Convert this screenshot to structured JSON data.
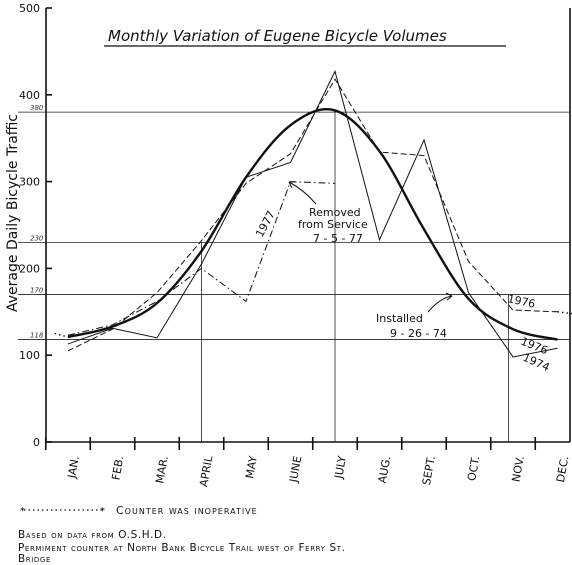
{
  "chart_data": {
    "type": "line",
    "title": "Monthly Variation of Eugene Bicycle Volumes",
    "ylabel": "Average Daily Bicycle Traffic",
    "xlabel": "",
    "ylim": [
      0,
      500
    ],
    "yticks": [
      "0",
      "100",
      "200",
      "300",
      "400",
      "500"
    ],
    "categories": [
      "Jan.",
      "Feb.",
      "Mar.",
      "April",
      "May",
      "June",
      "July",
      "Aug.",
      "Sept.",
      "Oct.",
      "Nov.",
      "Dec."
    ],
    "reference_lines": [
      {
        "label": "380",
        "value": 380
      },
      {
        "label": "230",
        "value": 230
      },
      {
        "label": "170",
        "value": 170
      },
      {
        "label": "118",
        "value": 118
      }
    ],
    "series": [
      {
        "name": "",
        "style": "smooth-bold",
        "x": [
          0,
          1,
          2,
          3,
          4,
          5,
          6,
          7,
          8,
          9,
          10,
          11
        ],
        "values": [
          121,
          133,
          160,
          220,
          305,
          365,
          382,
          335,
          245,
          165,
          130,
          118
        ]
      },
      {
        "name": "1974",
        "style": "thin",
        "x": [
          0,
          1,
          2,
          3,
          4,
          5,
          6,
          7,
          8,
          9,
          10,
          11
        ],
        "values": [
          113,
          131,
          120,
          205,
          305,
          322,
          427,
          233,
          348,
          172,
          98,
          108
        ]
      },
      {
        "name": "1976",
        "style": "dashed",
        "x": [
          0,
          1,
          2,
          3,
          4,
          5,
          6,
          7,
          8,
          9,
          10,
          11
        ],
        "values": [
          105,
          130,
          172,
          232,
          298,
          332,
          418,
          334,
          330,
          208,
          152,
          150
        ]
      },
      {
        "name": "1977",
        "style": "dash-dot",
        "x": [
          0,
          1,
          2,
          3,
          4,
          5,
          6
        ],
        "values": [
          123,
          135,
          162,
          200,
          162,
          300,
          298
        ]
      },
      {
        "name": "",
        "style": "inoperative",
        "x": [
          11,
          11.8
        ],
        "values": [
          150,
          145
        ]
      },
      {
        "name": "",
        "style": "inoperative",
        "x": [
          -0.3,
          0
        ],
        "values": [
          125,
          121
        ]
      }
    ],
    "annotations": [
      {
        "text_lines": [
          "Removed",
          "from Service",
          "7 - 5 - 77"
        ]
      },
      {
        "text_lines": [
          "Installed",
          "9 - 26 - 74"
        ]
      }
    ]
  },
  "legend_note": "Counter was inoperative",
  "footer": {
    "line1": "Based on data from O.S.H.D.",
    "line2": "Permiment counter at North Bank Bicycle Trail west of Ferry St.",
    "line3": "Bridge"
  }
}
